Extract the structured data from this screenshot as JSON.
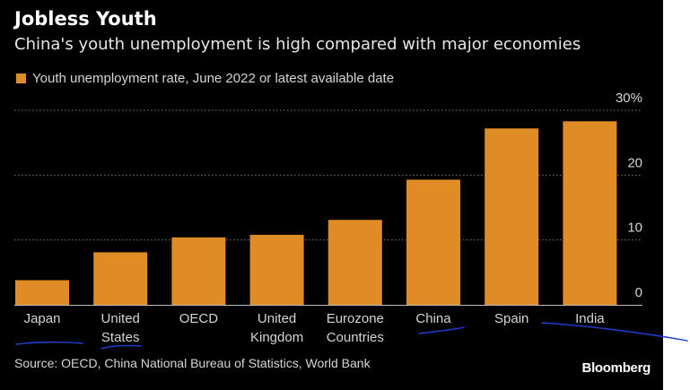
{
  "header": {
    "title": "Jobless Youth",
    "subtitle": "China's youth unemployment is high compared with major economies"
  },
  "legend": {
    "label": "Youth unemployment rate, June 2022 or latest available date"
  },
  "footer": {
    "source": "Source: OECD, China National Bureau of Statistics, World Bank",
    "brand": "Bloomberg"
  },
  "colors": {
    "bar": "#e08c26",
    "background": "#000000",
    "grid": "#7a7a7a",
    "text": "#d4d4d4",
    "annotation_ink": "#1f3fd6"
  },
  "chart_data": {
    "type": "bar",
    "title": "Jobless Youth",
    "subtitle": "China's youth unemployment is high compared with major economies",
    "categories": [
      [
        "Japan"
      ],
      [
        "United",
        "States"
      ],
      [
        "OECD"
      ],
      [
        "United",
        "Kingdom"
      ],
      [
        "Eurozone",
        "Countries"
      ],
      [
        "China"
      ],
      [
        "Spain"
      ],
      [
        "India"
      ]
    ],
    "series": [
      {
        "name": "Youth unemployment rate, June 2022 or latest available date",
        "values": [
          3.8,
          8.1,
          10.4,
          10.8,
          13.1,
          19.3,
          27.2,
          28.3
        ]
      }
    ],
    "yticks": [
      0,
      10,
      20,
      30
    ],
    "ytick_labels": [
      "0",
      "10",
      "20",
      "30%"
    ],
    "ylim": [
      0,
      30
    ],
    "y_axis_side": "right",
    "grid": "horizontal dotted",
    "legend_position": "top-left",
    "xlabel": "",
    "ylabel": ""
  }
}
